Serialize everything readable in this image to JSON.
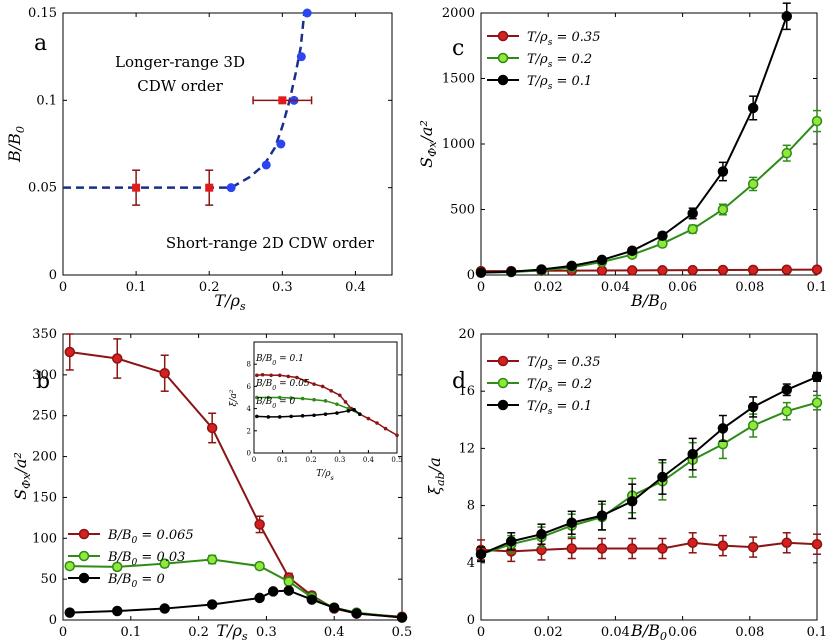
{
  "chart_data": [
    {
      "panel": "a",
      "type": "scatter",
      "xlabel": "T/ρ_s",
      "ylabel": "B/B_0",
      "xlim": [
        0,
        0.45
      ],
      "ylim": [
        0,
        0.15
      ],
      "xticks": [
        "0",
        "0.1",
        "0.2",
        "0.3",
        "0.4"
      ],
      "yticks": [
        "0",
        "0.05",
        "0.1",
        "0.15"
      ],
      "annotations": [
        "Longer-range 3D",
        "CDW order",
        "Short-range 2D CDW order"
      ],
      "series": [
        {
          "name": "phase-boundary",
          "style": "dashed-line",
          "color": "#1a2f8c",
          "x": [
            0,
            0.1,
            0.2,
            0.23,
            0.255,
            0.275,
            0.29,
            0.3,
            0.31,
            0.318,
            0.325,
            0.33
          ],
          "y": [
            0.05,
            0.05,
            0.05,
            0.05,
            0.056,
            0.063,
            0.073,
            0.085,
            0.1,
            0.115,
            0.13,
            0.15
          ]
        },
        {
          "name": "blue-points",
          "style": "markers",
          "color": "#2b45f0",
          "x": [
            0.23,
            0.278,
            0.298,
            0.316,
            0.326,
            0.334
          ],
          "y": [
            0.05,
            0.063,
            0.075,
            0.1,
            0.125,
            0.15
          ]
        },
        {
          "name": "red-squares",
          "style": "markers-errorbars",
          "color": "#e01b1b",
          "x": [
            0.1,
            0.2,
            0.3
          ],
          "y": [
            0.05,
            0.05,
            0.1
          ],
          "yerr": [
            0.01,
            0.01,
            0
          ],
          "xerr": [
            0,
            0,
            0.04
          ]
        }
      ]
    },
    {
      "panel": "b",
      "type": "line",
      "xlabel": "T/ρ_s",
      "ylabel": "S_Φx/a²",
      "xlim": [
        0,
        0.5
      ],
      "ylim": [
        0,
        350
      ],
      "xticks": [
        "0",
        "0.1",
        "0.2",
        "0.3",
        "0.4",
        "0.5"
      ],
      "yticks": [
        "0",
        "50",
        "100",
        "150",
        "200",
        "250",
        "300",
        "350"
      ],
      "legend": [
        "B/B_0 = 0.065",
        "B/B_0 = 0.03",
        "B/B_0 = 0"
      ],
      "series": [
        {
          "name": "B/B_0 = 0.065",
          "color": "#8b1414",
          "fill": "#d61f1f",
          "x": [
            0.01,
            0.08,
            0.15,
            0.22,
            0.29,
            0.333,
            0.367,
            0.4,
            0.433,
            0.5
          ],
          "y": [
            328,
            320,
            302,
            235,
            117,
            52,
            30,
            14,
            8,
            4
          ],
          "err": [
            22,
            24,
            22,
            18,
            10,
            5,
            4,
            2,
            1,
            1
          ]
        },
        {
          "name": "B/B_0 = 0.03",
          "color": "#2e8b16",
          "fill": "#8fe83a",
          "x": [
            0.01,
            0.08,
            0.15,
            0.22,
            0.29,
            0.333,
            0.367,
            0.4,
            0.433,
            0.5
          ],
          "y": [
            66,
            65,
            69,
            74,
            66,
            47,
            28,
            15,
            9,
            3
          ],
          "err": [
            4,
            4,
            4,
            5,
            4,
            4,
            3,
            2,
            1,
            1
          ]
        },
        {
          "name": "B/B_0 = 0",
          "color": "#000000",
          "fill": "#000000",
          "x": [
            0.01,
            0.08,
            0.15,
            0.22,
            0.29,
            0.31,
            0.333,
            0.367,
            0.4,
            0.433,
            0.5
          ],
          "y": [
            9,
            11,
            14,
            19,
            27,
            35,
            36,
            25,
            15,
            8,
            3
          ],
          "err": [
            1,
            1,
            1,
            1,
            2,
            2,
            2,
            2,
            1,
            1,
            1
          ]
        }
      ],
      "inset": {
        "xlabel": "T/ρ_s",
        "ylabel": "ξ/a²",
        "xlim": [
          0,
          0.5
        ],
        "ylim": [
          0,
          10
        ],
        "xticks": [
          "0",
          "0.1",
          "0.2",
          "0.3",
          "0.4",
          "0.5"
        ],
        "yticks": [
          "0",
          "2",
          "4",
          "6",
          "8"
        ],
        "labels": [
          "B/B_0 = 0.1",
          "B/B_0 = 0.05",
          "B/B_0 = 0"
        ],
        "series": [
          {
            "name": "B/B_0 = 0.1",
            "color": "#8b1414",
            "x": [
              0.01,
              0.03,
              0.06,
              0.09,
              0.12,
              0.15,
              0.18,
              0.21,
              0.24,
              0.27,
              0.3,
              0.32,
              0.34,
              0.37,
              0.4,
              0.43,
              0.46,
              0.5
            ],
            "y": [
              7,
              7.05,
              7,
              7,
              6.9,
              6.8,
              6.5,
              6.2,
              6,
              5.6,
              5.2,
              4.6,
              4,
              3.5,
              3.1,
              2.7,
              2.2,
              1.6
            ]
          },
          {
            "name": "B/B_0 = 0.05",
            "color": "#2e8b16",
            "x": [
              0.01,
              0.05,
              0.09,
              0.13,
              0.17,
              0.21,
              0.25,
              0.29,
              0.33,
              0.37
            ],
            "y": [
              5,
              5,
              5,
              4.95,
              4.9,
              4.8,
              4.7,
              4.4,
              4.0,
              3.5
            ]
          },
          {
            "name": "B/B_0 = 0",
            "color": "#000000",
            "x": [
              0.01,
              0.05,
              0.09,
              0.13,
              0.17,
              0.21,
              0.25,
              0.29,
              0.33,
              0.35,
              0.37
            ],
            "y": [
              3.3,
              3.25,
              3.25,
              3.3,
              3.35,
              3.4,
              3.5,
              3.6,
              3.8,
              3.9,
              3.5
            ]
          }
        ]
      }
    },
    {
      "panel": "c",
      "type": "line",
      "xlabel": "B/B_0",
      "ylabel": "S_Φx/a²",
      "xlim": [
        0,
        0.1
      ],
      "ylim": [
        0,
        2000
      ],
      "xticks": [
        "0",
        "0.02",
        "0.04",
        "0.06",
        "0.08",
        "0.1"
      ],
      "yticks": [
        "0",
        "500",
        "1000",
        "1500",
        "2000"
      ],
      "legend": [
        "T/ρ_s = 0.35",
        "T/ρ_s = 0.2",
        "T/ρ_s = 0.1"
      ],
      "series": [
        {
          "name": "T/ρ_s = 0.35",
          "color": "#8b1414",
          "fill": "#d61f1f",
          "x": [
            0,
            0.009,
            0.018,
            0.027,
            0.036,
            0.045,
            0.054,
            0.063,
            0.072,
            0.081,
            0.091,
            0.1
          ],
          "y": [
            30,
            30,
            32,
            33,
            34,
            35,
            36,
            37,
            38,
            39,
            40,
            41
          ],
          "err": [
            3,
            3,
            3,
            3,
            3,
            3,
            3,
            3,
            3,
            3,
            3,
            3
          ]
        },
        {
          "name": "T/ρ_s = 0.2",
          "color": "#2e8b16",
          "fill": "#8fe83a",
          "x": [
            0,
            0.009,
            0.018,
            0.027,
            0.036,
            0.045,
            0.054,
            0.063,
            0.072,
            0.081,
            0.091,
            0.1
          ],
          "y": [
            18,
            22,
            35,
            58,
            100,
            155,
            240,
            350,
            500,
            695,
            930,
            1175
          ],
          "err": [
            3,
            4,
            6,
            8,
            10,
            15,
            25,
            30,
            40,
            50,
            60,
            80
          ]
        },
        {
          "name": "T/ρ_s = 0.1",
          "color": "#000000",
          "fill": "#000000",
          "x": [
            0,
            0.009,
            0.018,
            0.027,
            0.036,
            0.045,
            0.054,
            0.063,
            0.072,
            0.081,
            0.091
          ],
          "y": [
            18,
            25,
            42,
            70,
            115,
            185,
            300,
            470,
            790,
            1275,
            1975
          ],
          "err": [
            3,
            4,
            6,
            8,
            12,
            18,
            25,
            40,
            70,
            90,
            100
          ]
        }
      ]
    },
    {
      "panel": "d",
      "type": "line",
      "xlabel": "B/B_0",
      "ylabel": "ξ_ab/a",
      "xlim": [
        0,
        0.1
      ],
      "ylim": [
        0,
        20
      ],
      "xticks": [
        "0",
        "0.02",
        "0.04",
        "0.06",
        "0.08",
        "0.1"
      ],
      "yticks": [
        "0",
        "4",
        "8",
        "12",
        "16",
        "20"
      ],
      "legend": [
        "T/ρ_s = 0.35",
        "T/ρ_s = 0.2",
        "T/ρ_s = 0.1"
      ],
      "series": [
        {
          "name": "T/ρ_s = 0.35",
          "color": "#8b1414",
          "fill": "#d61f1f",
          "x": [
            0,
            0.009,
            0.018,
            0.027,
            0.036,
            0.045,
            0.054,
            0.063,
            0.072,
            0.081,
            0.091,
            0.1
          ],
          "y": [
            4.9,
            4.8,
            4.9,
            5.0,
            5.0,
            5.0,
            5.0,
            5.4,
            5.2,
            5.1,
            5.4,
            5.3
          ],
          "err": [
            0.7,
            0.7,
            0.7,
            0.7,
            0.7,
            0.7,
            0.7,
            0.7,
            0.7,
            0.7,
            0.7,
            0.7
          ]
        },
        {
          "name": "T/ρ_s = 0.2",
          "color": "#2e8b16",
          "fill": "#8fe83a",
          "x": [
            0,
            0.009,
            0.018,
            0.027,
            0.036,
            0.045,
            0.054,
            0.063,
            0.072,
            0.081,
            0.091,
            0.1
          ],
          "y": [
            4.6,
            5.3,
            5.8,
            6.6,
            7.2,
            8.7,
            9.7,
            11.2,
            12.3,
            13.6,
            14.6,
            15.2
          ],
          "err": [
            0.5,
            0.6,
            0.7,
            0.8,
            0.9,
            1.2,
            1.3,
            1.2,
            1.0,
            0.8,
            0.6,
            0.5
          ]
        },
        {
          "name": "T/ρ_s = 0.1",
          "color": "#000000",
          "fill": "#000000",
          "x": [
            0,
            0.009,
            0.018,
            0.027,
            0.036,
            0.045,
            0.054,
            0.063,
            0.072,
            0.081,
            0.091,
            0.1
          ],
          "y": [
            4.6,
            5.5,
            6.0,
            6.8,
            7.3,
            8.3,
            10.0,
            11.6,
            13.4,
            14.9,
            16.1,
            17.0
          ],
          "err": [
            0.5,
            0.6,
            0.7,
            0.8,
            1.0,
            1.2,
            1.2,
            1.1,
            0.9,
            0.7,
            0.4,
            0.3
          ]
        }
      ]
    }
  ]
}
